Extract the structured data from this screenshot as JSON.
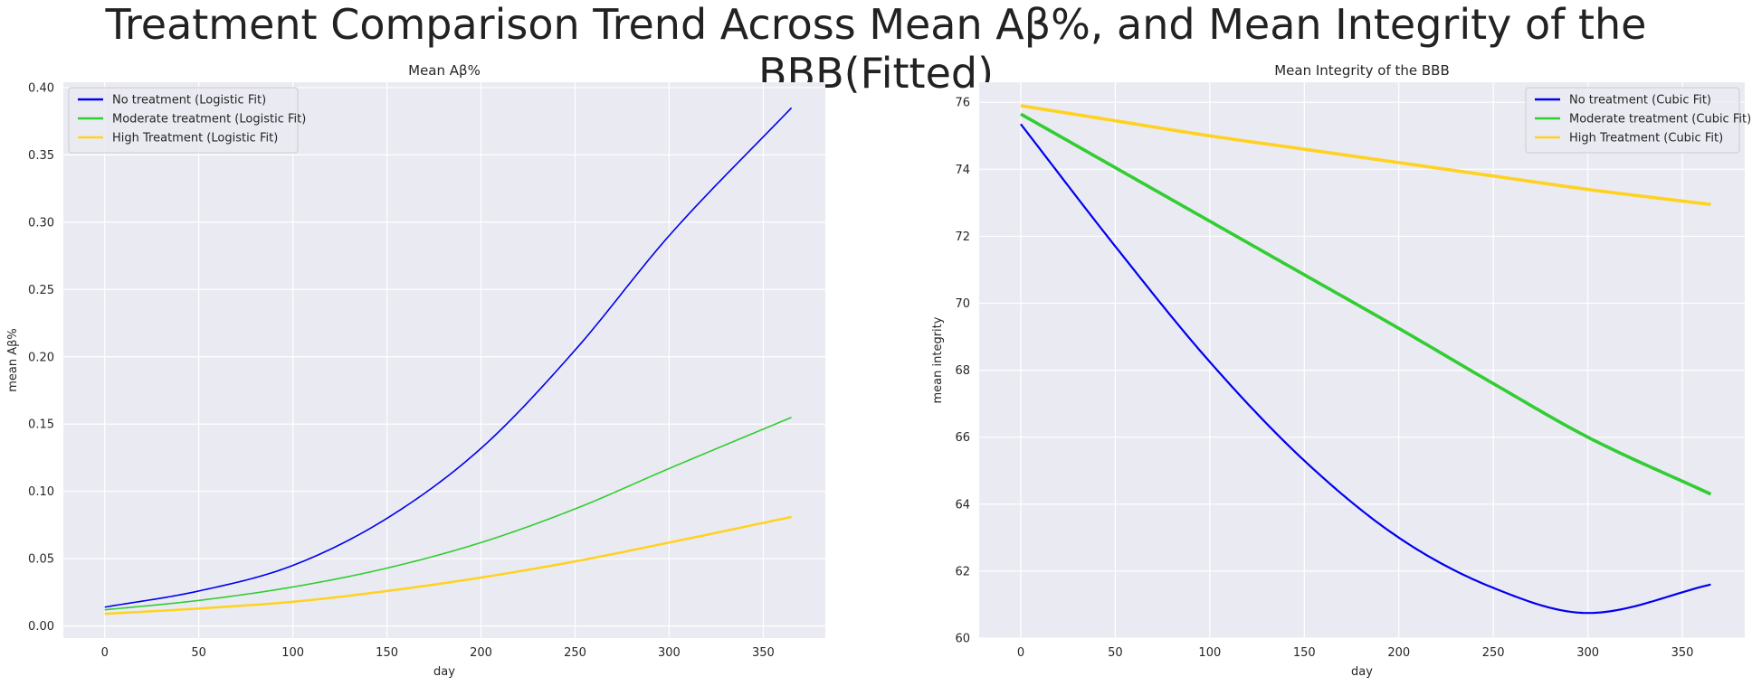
{
  "figure": {
    "suptitle": "Treatment Comparison Trend Across Mean Aβ%, and Mean Integrity of the BBB(Fitted)"
  },
  "chart_data": [
    {
      "type": "line",
      "title": "Mean Aβ%",
      "xlabel": "day",
      "ylabel": "mean Aβ%",
      "xlim": [
        -22,
        383
      ],
      "ylim": [
        -0.009,
        0.404
      ],
      "xticks": [
        0,
        50,
        100,
        150,
        200,
        250,
        300,
        350
      ],
      "yticks": [
        0.0,
        0.05,
        0.1,
        0.15,
        0.2,
        0.25,
        0.3,
        0.35,
        0.4
      ],
      "ytick_labels": [
        "0.00",
        "0.05",
        "0.10",
        "0.15",
        "0.20",
        "0.25",
        "0.30",
        "0.35",
        "0.40"
      ],
      "grid": true,
      "legend_position": "upper left",
      "x": [
        0,
        50,
        100,
        150,
        200,
        250,
        300,
        365
      ],
      "series": [
        {
          "name": "No treatment (Logistic Fit)",
          "color": "#0000ee",
          "width": 1.6,
          "values": [
            0.014,
            0.026,
            0.045,
            0.08,
            0.132,
            0.205,
            0.29,
            0.385
          ]
        },
        {
          "name": "Moderate treatment (Logistic Fit)",
          "color": "#32cd32",
          "width": 1.6,
          "values": [
            0.012,
            0.019,
            0.029,
            0.043,
            0.062,
            0.087,
            0.117,
            0.155
          ]
        },
        {
          "name": "High Treatment (Logistic Fit)",
          "color": "#ffd21f",
          "width": 2.5,
          "values": [
            0.009,
            0.013,
            0.018,
            0.026,
            0.036,
            0.048,
            0.062,
            0.081
          ]
        }
      ]
    },
    {
      "type": "line",
      "title": "Mean Integrity of the BBB",
      "xlabel": "day",
      "ylabel": "mean integrity",
      "xlim": [
        -22,
        383
      ],
      "ylim": [
        60,
        76.6
      ],
      "xticks": [
        0,
        50,
        100,
        150,
        200,
        250,
        300,
        350
      ],
      "yticks": [
        60,
        62,
        64,
        66,
        68,
        70,
        72,
        74,
        76
      ],
      "ytick_labels": [
        "60",
        "62",
        "64",
        "66",
        "68",
        "70",
        "72",
        "74",
        "76"
      ],
      "grid": true,
      "legend_position": "upper right",
      "x": [
        0,
        50,
        100,
        150,
        200,
        250,
        300,
        365
      ],
      "series": [
        {
          "name": "No treatment (Cubic Fit)",
          "color": "#0000ee",
          "width": 2.2,
          "values": [
            75.35,
            71.7,
            68.25,
            65.3,
            63.0,
            61.5,
            60.75,
            61.6
          ]
        },
        {
          "name": "Moderate treatment (Cubic Fit)",
          "color": "#32cd32",
          "width": 3.6,
          "values": [
            75.65,
            74.05,
            72.45,
            70.85,
            69.25,
            67.6,
            66.0,
            64.3
          ]
        },
        {
          "name": "High Treatment (Cubic Fit)",
          "color": "#ffd21f",
          "width": 3.6,
          "values": [
            75.9,
            75.45,
            75.0,
            74.6,
            74.2,
            73.8,
            73.4,
            72.95
          ]
        }
      ]
    }
  ]
}
